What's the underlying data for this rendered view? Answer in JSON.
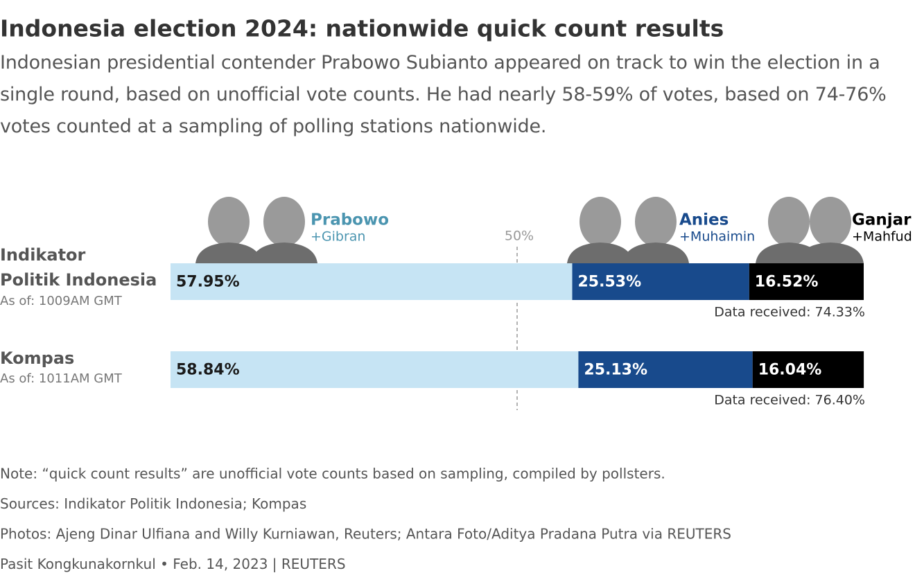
{
  "chart_data": {
    "type": "bar",
    "orientation": "horizontal",
    "stacked": true,
    "title": "Indonesia election 2024: nationwide quick count results",
    "subtitle": "Indonesian presidential contender Prabowo Subianto appeared on track to win the election in a single round, based on unofficial vote counts. He had nearly 58-59% of votes, based on 74-76% votes counted at a sampling of polling stations nationwide.",
    "categories": [
      "Indikator\nPolitik Indonesia",
      "Kompas"
    ],
    "category_notes": [
      "As of: 1009AM GMT",
      "As of: 1011AM GMT"
    ],
    "row_notes": [
      "Data received: 74.33%",
      "Data received: 76.40%"
    ],
    "series": [
      {
        "name": "Prabowo",
        "partner": "+Gibran",
        "color": "#c6e4f4",
        "name_color": "#4b95b0",
        "text_color": "#1a1a1a",
        "values": [
          57.95,
          58.84
        ],
        "value_labels": [
          "57.95%",
          "58.84%"
        ]
      },
      {
        "name": "Anies",
        "partner": "+Muhaimin",
        "color": "#184a8c",
        "name_color": "#184a8c",
        "text_color": "#ffffff",
        "values": [
          25.53,
          25.13
        ],
        "value_labels": [
          "25.53%",
          "25.13%"
        ]
      },
      {
        "name": "Ganjar",
        "partner": "+Mahfud",
        "color": "#000000",
        "name_color": "#000000",
        "text_color": "#ffffff",
        "values": [
          16.52,
          16.04
        ],
        "value_labels": [
          "16.52%",
          "16.04%"
        ]
      }
    ],
    "xlim": [
      0,
      100
    ],
    "reference_line": {
      "value": 50,
      "label": "50%"
    },
    "footnotes": [
      "Note: “quick count results” are unofficial vote counts based on sampling, compiled by pollsters.",
      "Sources: Indikator Politik Indonesia; Kompas",
      "Photos: Ajeng Dinar Ulfiana and Willy Kurniawan, Reuters; Antara Foto/Aditya Pradana Putra via REUTERS",
      "Pasit Kongkunakornkul • Feb. 14, 2023 | REUTERS"
    ]
  }
}
